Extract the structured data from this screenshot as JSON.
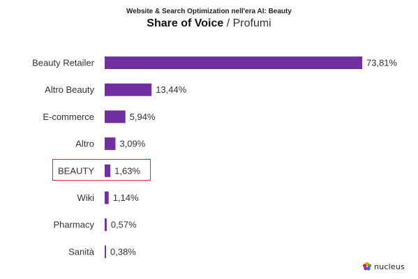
{
  "header": {
    "subtitle": "Website & Search Optimization nell'era AI: Beauty",
    "title_main": "Share of Voice",
    "title_separator": " / ",
    "title_sub": "Profumi"
  },
  "chart_data": {
    "type": "bar",
    "orientation": "horizontal",
    "title": "Share of Voice / Profumi",
    "subtitle": "Website & Search Optimization nell'era AI: Beauty",
    "categories": [
      "Beauty Retailer",
      "Altro Beauty",
      "E-commerce",
      "Altro",
      "BEAUTY",
      "Wiki",
      "Pharmacy",
      "Sanità"
    ],
    "values": [
      73.81,
      13.44,
      5.94,
      3.09,
      1.63,
      1.14,
      0.57,
      0.38
    ],
    "value_labels": [
      "73,81%",
      "13,44%",
      "5,94%",
      "3,09%",
      "1,63%",
      "1,14%",
      "0,57%",
      "0,38%"
    ],
    "unit": "%",
    "xlim": [
      0,
      73.81
    ],
    "grid": false,
    "legend": "none",
    "bar_color": "#7030a0",
    "highlighted_category": "BEAUTY",
    "highlight_color": "#d9262c"
  },
  "logo": {
    "text": "nucleus",
    "colors": [
      "#e8a020",
      "#3fa64a",
      "#2f6fd1",
      "#7a3db3",
      "#d9262c"
    ]
  }
}
